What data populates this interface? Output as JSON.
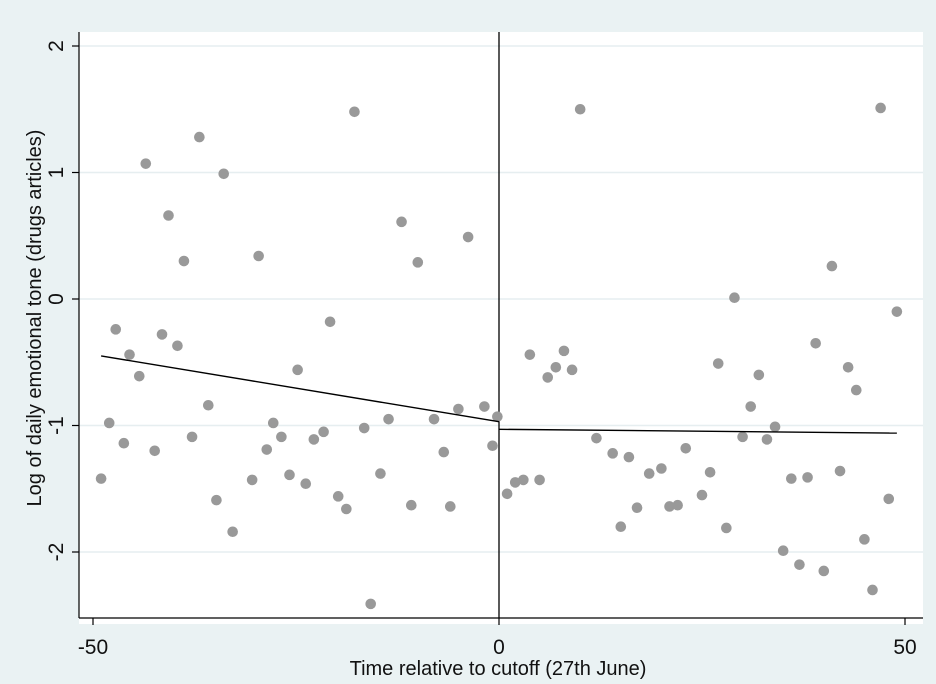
{
  "chart_data": {
    "type": "scatter",
    "title": "",
    "xlabel": "Time relative to cutoff (27th June)",
    "ylabel": "Log of daily emotional tone (drugs articles)",
    "xlim": [
      -50,
      50
    ],
    "ylim": [
      -2.5,
      2
    ],
    "xticks": [
      -50,
      0,
      50
    ],
    "yticks": [
      -2,
      -1,
      0,
      1,
      2
    ],
    "grid": "horizontal",
    "cutoff": 0,
    "colors": {
      "background": "#eaf2f3",
      "plot": "#ffffff",
      "points": "#999999",
      "lines": "#000000",
      "grid": "#e6eef0"
    },
    "fit_lines": [
      {
        "x": [
          -49,
          0
        ],
        "y": [
          -0.45,
          -0.97
        ]
      },
      {
        "x": [
          0,
          49
        ],
        "y": [
          -1.03,
          -1.06
        ]
      }
    ],
    "points": [
      [
        -49,
        -1.42
      ],
      [
        -48,
        -0.98
      ],
      [
        -47.2,
        -0.24
      ],
      [
        -46.2,
        -1.14
      ],
      [
        -45.5,
        -0.44
      ],
      [
        -44.3,
        -0.61
      ],
      [
        -43.5,
        1.07
      ],
      [
        -42.4,
        -1.2
      ],
      [
        -41.5,
        -0.28
      ],
      [
        -40.7,
        0.66
      ],
      [
        -39.6,
        -0.37
      ],
      [
        -38.8,
        0.3
      ],
      [
        -37.8,
        -1.09
      ],
      [
        -36.9,
        1.28
      ],
      [
        -35.8,
        -0.84
      ],
      [
        -34.8,
        -1.59
      ],
      [
        -33.9,
        0.99
      ],
      [
        -32.8,
        -1.84
      ],
      [
        -30.4,
        -1.43
      ],
      [
        -29.6,
        0.34
      ],
      [
        -28.6,
        -1.19
      ],
      [
        -27.8,
        -0.98
      ],
      [
        -26.8,
        -1.09
      ],
      [
        -25.8,
        -1.39
      ],
      [
        -24.8,
        -0.56
      ],
      [
        -23.8,
        -1.46
      ],
      [
        -22.8,
        -1.11
      ],
      [
        -21.6,
        -1.05
      ],
      [
        -20.8,
        -0.18
      ],
      [
        -19.8,
        -1.56
      ],
      [
        -18.8,
        -1.66
      ],
      [
        -17.8,
        1.48
      ],
      [
        -16.6,
        -1.02
      ],
      [
        -15.8,
        -2.41
      ],
      [
        -14.6,
        -1.38
      ],
      [
        -13.6,
        -0.95
      ],
      [
        -12.0,
        0.61
      ],
      [
        -10.8,
        -1.63
      ],
      [
        -10.0,
        0.29
      ],
      [
        -8.0,
        -0.95
      ],
      [
        -6.8,
        -1.21
      ],
      [
        -6.0,
        -1.64
      ],
      [
        -5.0,
        -0.87
      ],
      [
        -3.8,
        0.49
      ],
      [
        -1.8,
        -0.85
      ],
      [
        -0.8,
        -1.16
      ],
      [
        -0.2,
        -0.93
      ],
      [
        1.0,
        -1.54
      ],
      [
        2.0,
        -1.45
      ],
      [
        3.0,
        -1.43
      ],
      [
        3.8,
        -0.44
      ],
      [
        5.0,
        -1.43
      ],
      [
        6.0,
        -0.62
      ],
      [
        7.0,
        -0.54
      ],
      [
        8.0,
        -0.41
      ],
      [
        9.0,
        -0.56
      ],
      [
        10.0,
        1.5
      ],
      [
        12.0,
        -1.1
      ],
      [
        14.0,
        -1.22
      ],
      [
        15.0,
        -1.8
      ],
      [
        16.0,
        -1.25
      ],
      [
        17.0,
        -1.65
      ],
      [
        18.5,
        -1.38
      ],
      [
        20.0,
        -1.34
      ],
      [
        21.0,
        -1.64
      ],
      [
        22.0,
        -1.63
      ],
      [
        23.0,
        -1.18
      ],
      [
        25.0,
        -1.55
      ],
      [
        26.0,
        -1.37
      ],
      [
        27.0,
        -0.51
      ],
      [
        28.0,
        -1.81
      ],
      [
        29.0,
        0.01
      ],
      [
        30.0,
        -1.09
      ],
      [
        31.0,
        -0.85
      ],
      [
        32.0,
        -0.6
      ],
      [
        33.0,
        -1.11
      ],
      [
        34.0,
        -1.01
      ],
      [
        35.0,
        -1.99
      ],
      [
        36.0,
        -1.42
      ],
      [
        37.0,
        -2.1
      ],
      [
        38.0,
        -1.41
      ],
      [
        39.0,
        -0.35
      ],
      [
        40.0,
        -2.15
      ],
      [
        41.0,
        0.26
      ],
      [
        42.0,
        -1.36
      ],
      [
        43.0,
        -0.54
      ],
      [
        44.0,
        -0.72
      ],
      [
        45.0,
        -1.9
      ],
      [
        46.0,
        -2.3
      ],
      [
        47.0,
        1.51
      ],
      [
        48.0,
        -1.58
      ],
      [
        49.0,
        -0.1
      ]
    ]
  }
}
